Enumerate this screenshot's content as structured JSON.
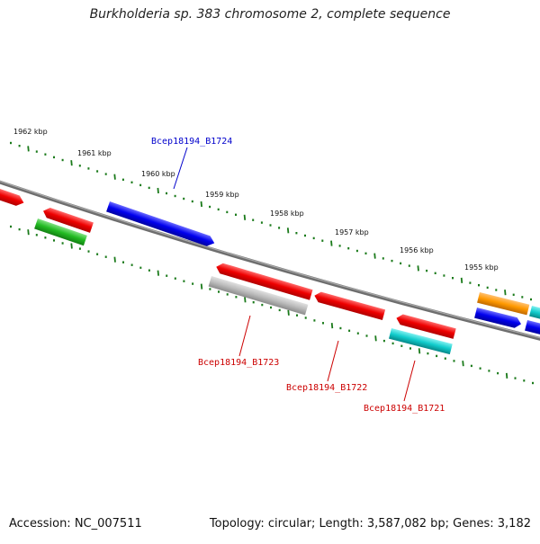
{
  "title": "Burkholderia sp. 383 chromosome 2, complete sequence",
  "footer": {
    "accession": "Accession: NC_007511",
    "summary": "Topology: circular; Length: 3,587,082 bp; Genes: 3,182"
  },
  "ticks": [
    "1962 kbp",
    "1961 kbp",
    "1960 kbp",
    "1959 kbp",
    "1958 kbp",
    "1957 kbp",
    "1956 kbp",
    "1955 kbp"
  ],
  "gene_labels": [
    "Bcep18194_B1724",
    "Bcep18194_B1723",
    "Bcep18194_B1722",
    "Bcep18194_B1721"
  ],
  "colors": {
    "backbone": "#808080",
    "tick": "#1a7a1a",
    "label_blue": "#0000cc",
    "label_red": "#cc0000"
  }
}
